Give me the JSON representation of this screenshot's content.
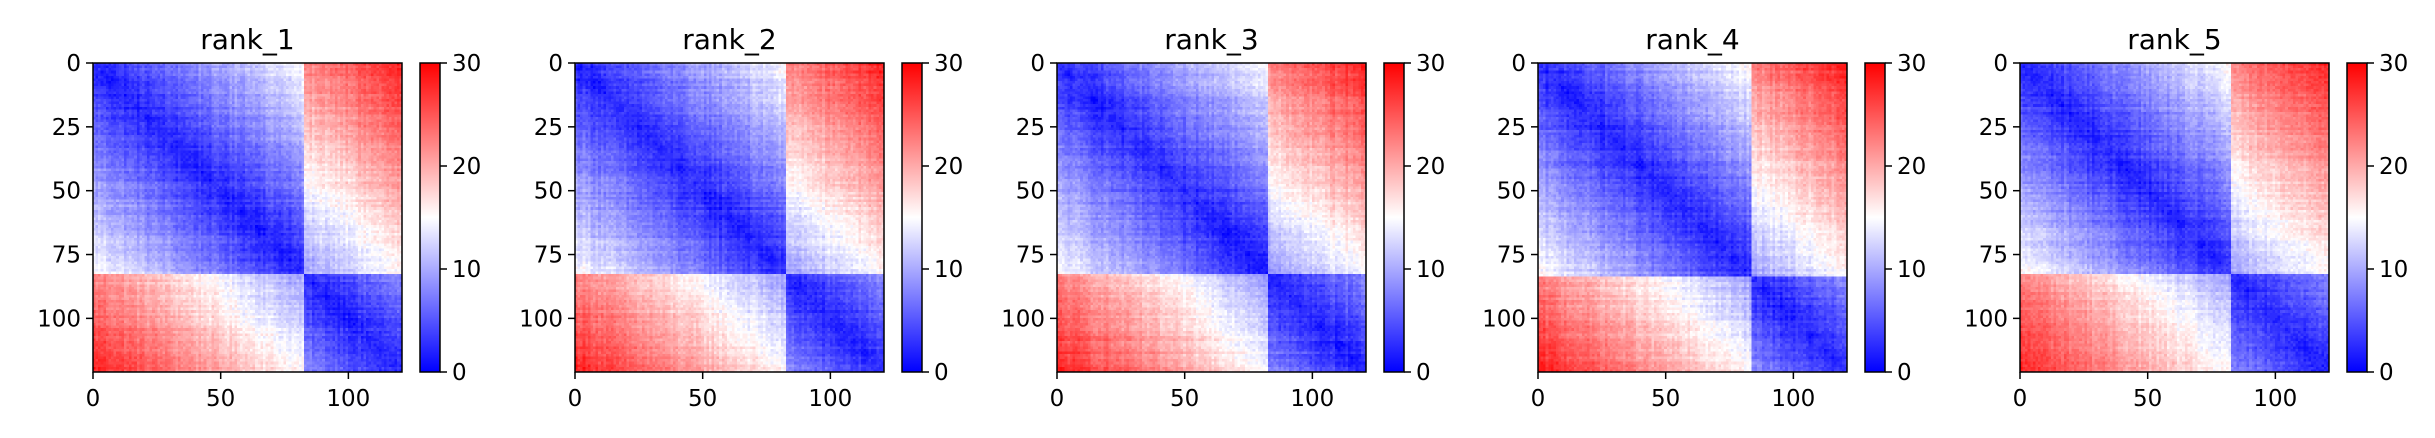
{
  "chart_data": {
    "type": "heatmap",
    "colormap": "bwr",
    "colors": {
      "low": "#0000ff",
      "mid": "#ffffff",
      "high": "#ff0000"
    },
    "colorbar": {
      "range": [
        0,
        30
      ],
      "ticks": [
        "0",
        "10",
        "20",
        "30"
      ]
    },
    "x_axis": {
      "range": [
        0,
        121
      ],
      "ticks": [
        "0",
        "50",
        "100"
      ]
    },
    "y_axis": {
      "range": [
        0,
        121
      ],
      "inverted": true,
      "ticks": [
        "0",
        "25",
        "50",
        "75",
        "100"
      ]
    },
    "grid": false,
    "panels": [
      {
        "title": "rank_1",
        "domain_breaks": [
          82
        ]
      },
      {
        "title": "rank_2",
        "domain_breaks": [
          82
        ]
      },
      {
        "title": "rank_3",
        "domain_breaks": [
          82
        ]
      },
      {
        "title": "rank_4",
        "domain_breaks": [
          83
        ]
      },
      {
        "title": "rank_5",
        "domain_breaks": [
          82
        ]
      }
    ]
  }
}
